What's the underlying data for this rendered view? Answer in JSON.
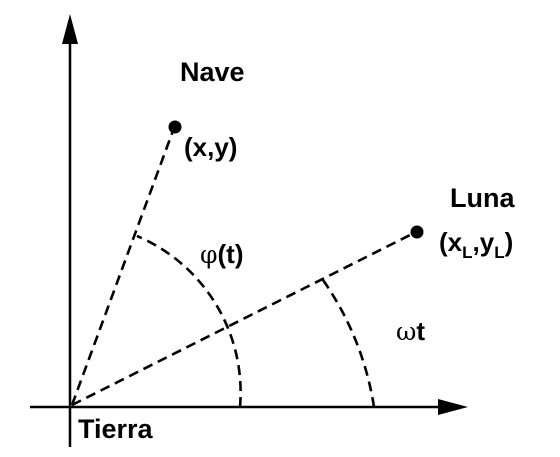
{
  "labels": {
    "ship": "Nave",
    "ship_coords": "(x,y)",
    "moon": "Luna",
    "moon_coords_open": "(x",
    "moon_coords_sub1": "L",
    "moon_coords_sep": ",y",
    "moon_coords_sub2": "L",
    "moon_coords_close": ")",
    "earth": "Tierra",
    "ship_angle_symbol": "φ",
    "ship_angle_arg": "(t)",
    "moon_angle_symbol": "ω",
    "moon_angle_var": "t"
  },
  "colors": {
    "ink": "#000000",
    "background": "#ffffff"
  }
}
